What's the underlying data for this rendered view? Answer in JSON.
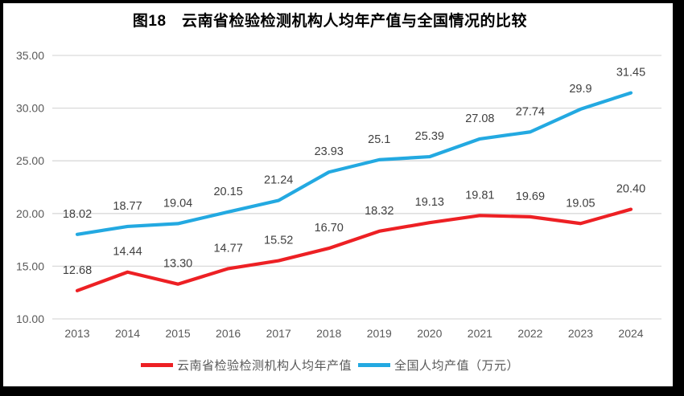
{
  "page": {
    "title": "图18　云南省检验检测机构人均年产值与全国情况的比较"
  },
  "chart_data": {
    "type": "line",
    "title": "图18　云南省检验检测机构人均年产值与全国情况的比较",
    "categories": [
      "2013",
      "2014",
      "2015",
      "2016",
      "2017",
      "2018",
      "2019",
      "2020",
      "2021",
      "2022",
      "2023",
      "2024"
    ],
    "series": [
      {
        "name": "云南省检验检测机构人均年产值",
        "color": "#ed2024",
        "values": [
          12.68,
          14.44,
          13.3,
          14.77,
          15.52,
          16.7,
          18.32,
          19.13,
          19.81,
          19.69,
          19.05,
          20.4
        ],
        "labels": [
          "12.68",
          "14.44",
          "13.30",
          "14.77",
          "15.52",
          "16.70",
          "18.32",
          "19.13",
          "19.81",
          "19.69",
          "19.05",
          "20.40"
        ]
      },
      {
        "name": "全国人均产值（万元）",
        "color": "#23a9e1",
        "values": [
          18.02,
          18.77,
          19.04,
          20.15,
          21.24,
          23.93,
          25.1,
          25.39,
          27.08,
          27.74,
          29.9,
          31.45
        ],
        "labels": [
          "18.02",
          "18.77",
          "19.04",
          "20.15",
          "21.24",
          "23.93",
          "25.1",
          "25.39",
          "27.08",
          "27.74",
          "29.9",
          "31.45"
        ]
      }
    ],
    "xlabel": "",
    "ylabel": "",
    "ylim": [
      10,
      35
    ],
    "ytick_step": 5,
    "ytick_labels": [
      "10.00",
      "15.00",
      "20.00",
      "25.00",
      "30.00",
      "35.00"
    ],
    "grid": true,
    "legend_position": "bottom",
    "colors": {
      "gridline": "#d9d9d9",
      "tick_text": "#595959",
      "data_label": "#404040",
      "title_text": "#000000",
      "frame": "#000000",
      "background": "#ffffff"
    }
  }
}
